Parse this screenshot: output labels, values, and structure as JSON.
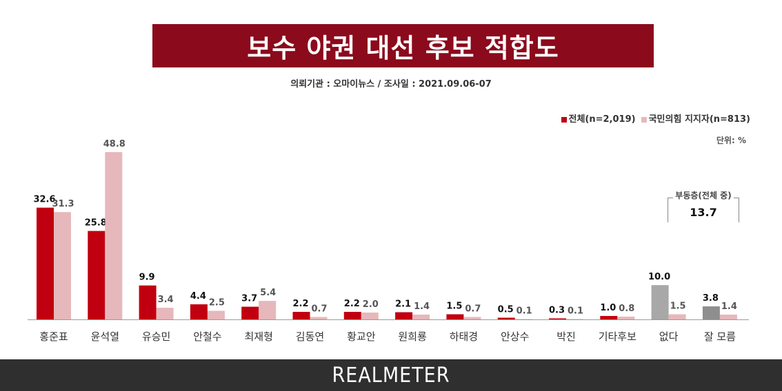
{
  "header": {
    "title": "보수 야권 대선 후보 적합도",
    "subtitle": "의뢰기관 : 오마이뉴스  /  조사일 : 2021.09.06-07"
  },
  "legend": {
    "series1": "전체(n=2,019)",
    "series2": "국민의힘 지지자(n=813)"
  },
  "unit_label": "단위: %",
  "floating_voters": {
    "label": "부동층(전체 중)",
    "value": "13.7"
  },
  "footer": {
    "brand": "REALMETER"
  },
  "colors": {
    "title_bg": "#8b0a1c",
    "series1": "#c00010",
    "series2": "#e6b8bb",
    "gray_total": "#a8a8a8",
    "gray_dark": "#8e8e8e"
  },
  "chart_data": {
    "type": "bar",
    "categories": [
      "홍준표",
      "윤석열",
      "유승민",
      "안철수",
      "최재형",
      "김동연",
      "황교안",
      "원희룡",
      "하태경",
      "안상수",
      "박진",
      "기타후보",
      "없다",
      "잘 모름"
    ],
    "series": [
      {
        "name": "전체(n=2,019)",
        "values": [
          32.6,
          25.8,
          9.9,
          4.4,
          3.7,
          2.2,
          2.2,
          2.1,
          1.5,
          0.5,
          0.3,
          1.0,
          10.0,
          3.8
        ]
      },
      {
        "name": "국민의힘 지지자(n=813)",
        "values": [
          31.3,
          48.8,
          3.4,
          2.5,
          5.4,
          0.7,
          2.0,
          1.4,
          0.7,
          0.1,
          0.1,
          0.8,
          1.5,
          1.4
        ]
      }
    ],
    "value_labels": [
      [
        "32.6",
        "25.8",
        "9.9",
        "4.4",
        "3.7",
        "2.2",
        "2.2",
        "2.1",
        "1.5",
        "0.5",
        "0.3",
        "1.0",
        "10.0",
        "3.8"
      ],
      [
        "31.3",
        "48.8",
        "3.4",
        "2.5",
        "5.4",
        "0.7",
        "2.0",
        "1.4",
        "0.7",
        "0.1",
        "0.1",
        "0.8",
        "1.5",
        "1.4"
      ]
    ],
    "ylim": [
      0,
      50
    ],
    "grid": false,
    "legend_position": "top-right"
  }
}
